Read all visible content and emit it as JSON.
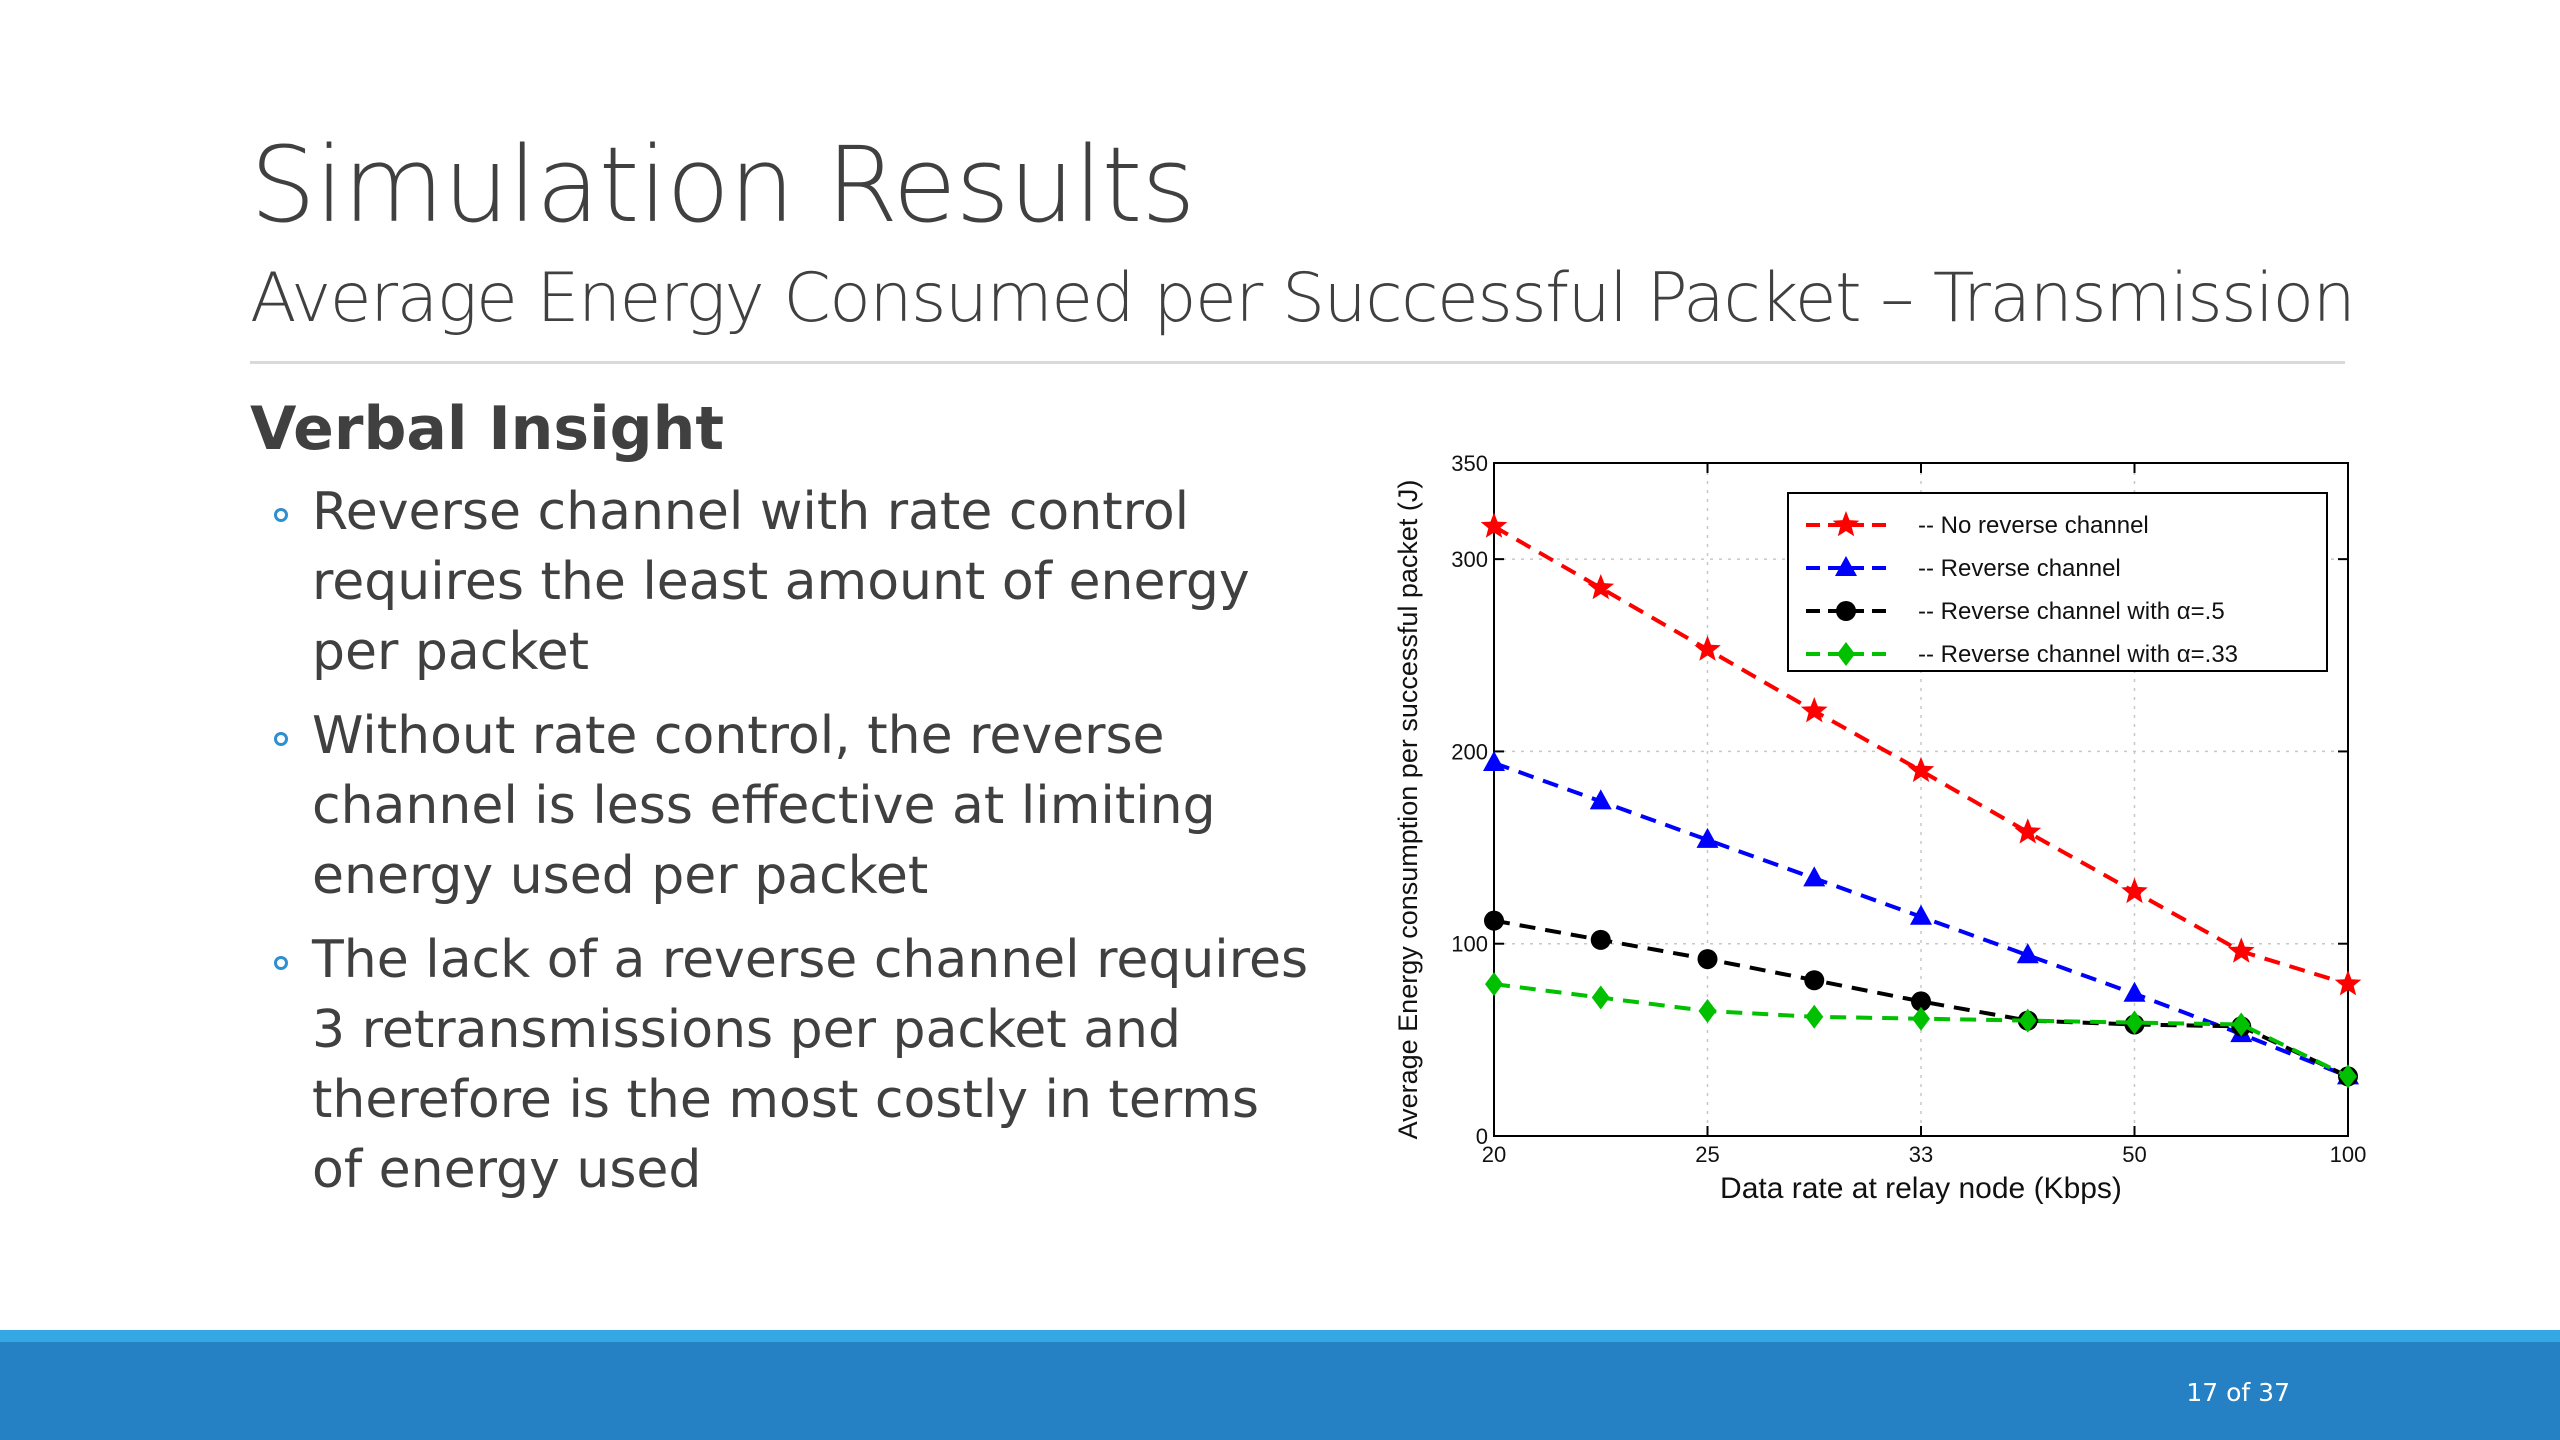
{
  "slide": {
    "title": "Simulation Results",
    "subtitle": "Average Energy Consumed per Successful Packet – Transmission",
    "section_heading": "Verbal Insight",
    "bullets": [
      "Reverse channel with rate control requires the least amount of energy per packet",
      "Without rate control, the reverse channel is less effective at limiting energy used per packet",
      "The lack of a reverse channel requires 3 retransmissions per packet and therefore is the most costly in terms of energy used"
    ],
    "page_number": "17 of 37",
    "colors": {
      "accent": "#2e8fd0",
      "footer": "#2581c4",
      "footer_stripe": "#35a7e3"
    }
  },
  "chart_data": {
    "type": "line",
    "title": "",
    "xlabel": "Data rate at relay node (Kbps)",
    "ylabel": "Average Energy consumption per successful packet (J)",
    "x_tick_labels": [
      "20",
      "25",
      "33",
      "50",
      "100"
    ],
    "x_tick_positions": [
      0,
      2,
      4,
      6,
      8
    ],
    "y_ticks": [
      0,
      100,
      200,
      300,
      350
    ],
    "ylim": [
      0,
      350
    ],
    "x_range": [
      0,
      8
    ],
    "grid": true,
    "legend_position": "top-right",
    "series": [
      {
        "name": "-- No reverse channel",
        "color": "#ff0000",
        "marker": "star",
        "dash": "dashed",
        "x": [
          0,
          1,
          2,
          3,
          4,
          5,
          6,
          7,
          8
        ],
        "y": [
          317,
          285,
          253,
          221,
          190,
          158,
          127,
          96,
          79
        ]
      },
      {
        "name": "-- Reverse channel",
        "color": "#0000ff",
        "marker": "triangle",
        "dash": "dashed",
        "x": [
          0,
          1,
          2,
          3,
          4,
          5,
          6,
          7,
          8
        ],
        "y": [
          194,
          174,
          154,
          134,
          114,
          94,
          74,
          53,
          31
        ]
      },
      {
        "name": "-- Reverse channel with α=.5",
        "color": "#000000",
        "marker": "circle",
        "dash": "dashed",
        "x": [
          0,
          1,
          2,
          3,
          4,
          5,
          6,
          7,
          8
        ],
        "y": [
          112,
          102,
          92,
          81,
          70,
          60,
          58,
          57,
          31
        ]
      },
      {
        "name": "-- Reverse channel with α=.33",
        "color": "#00c000",
        "marker": "diamond",
        "dash": "dashed",
        "x": [
          0,
          1,
          2,
          3,
          4,
          5,
          6,
          7,
          8
        ],
        "y": [
          79,
          72,
          65,
          62,
          61,
          60,
          59,
          58,
          31
        ]
      }
    ]
  }
}
